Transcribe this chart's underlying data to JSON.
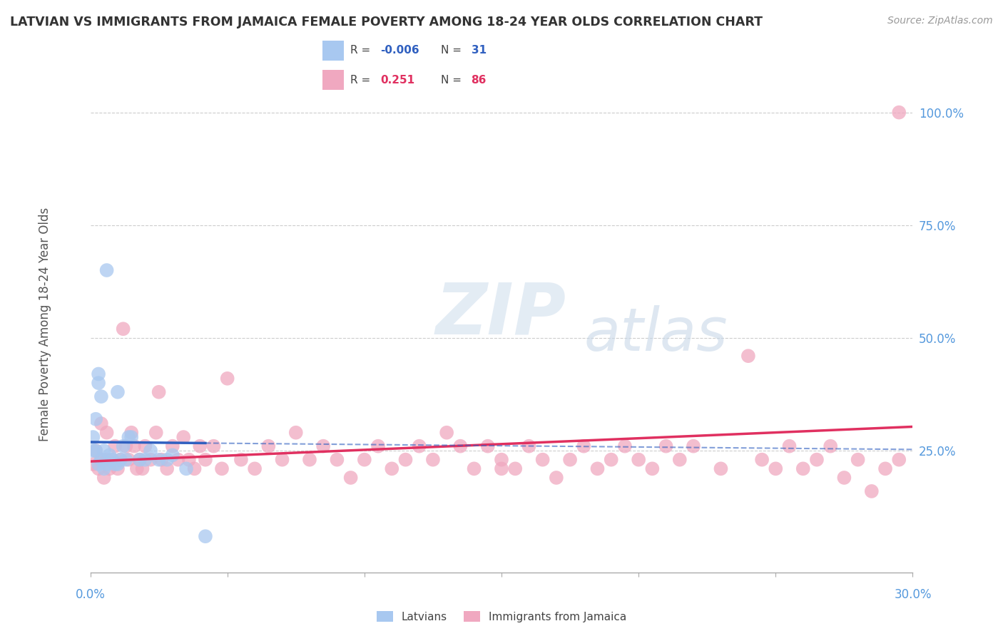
{
  "title": "LATVIAN VS IMMIGRANTS FROM JAMAICA FEMALE POVERTY AMONG 18-24 YEAR OLDS CORRELATION CHART",
  "source": "Source: ZipAtlas.com",
  "ylabel": "Female Poverty Among 18-24 Year Olds",
  "ylabel_ticks": [
    "100.0%",
    "75.0%",
    "50.0%",
    "25.0%"
  ],
  "ylabel_tick_vals": [
    1.0,
    0.75,
    0.5,
    0.25
  ],
  "xmin": 0.0,
  "xmax": 0.3,
  "ymin": -0.02,
  "ymax": 1.08,
  "latvian_R": -0.006,
  "latvian_N": 31,
  "jamaica_R": 0.251,
  "jamaica_N": 86,
  "latvian_color": "#a8c8f0",
  "jamaica_color": "#f0a8c0",
  "latvian_line_color": "#3060c0",
  "jamaica_line_color": "#e03060",
  "watermark_zip": "ZIP",
  "watermark_atlas": "atlas",
  "latvian_points_x": [
    0.001,
    0.001,
    0.002,
    0.002,
    0.003,
    0.003,
    0.003,
    0.004,
    0.004,
    0.005,
    0.005,
    0.006,
    0.006,
    0.007,
    0.008,
    0.009,
    0.01,
    0.01,
    0.011,
    0.012,
    0.013,
    0.014,
    0.015,
    0.018,
    0.02,
    0.022,
    0.025,
    0.028,
    0.03,
    0.035,
    0.042
  ],
  "latvian_points_y": [
    0.25,
    0.28,
    0.25,
    0.32,
    0.22,
    0.4,
    0.42,
    0.23,
    0.37,
    0.21,
    0.25,
    0.22,
    0.65,
    0.24,
    0.23,
    0.22,
    0.22,
    0.38,
    0.23,
    0.26,
    0.23,
    0.28,
    0.28,
    0.23,
    0.23,
    0.25,
    0.23,
    0.23,
    0.24,
    0.21,
    0.06
  ],
  "jamaica_points_x": [
    0.001,
    0.002,
    0.003,
    0.004,
    0.004,
    0.005,
    0.006,
    0.006,
    0.007,
    0.008,
    0.009,
    0.01,
    0.011,
    0.012,
    0.013,
    0.014,
    0.015,
    0.016,
    0.017,
    0.018,
    0.019,
    0.02,
    0.022,
    0.024,
    0.025,
    0.026,
    0.028,
    0.03,
    0.032,
    0.034,
    0.036,
    0.038,
    0.04,
    0.042,
    0.045,
    0.048,
    0.05,
    0.055,
    0.06,
    0.065,
    0.07,
    0.075,
    0.08,
    0.085,
    0.09,
    0.095,
    0.1,
    0.105,
    0.11,
    0.115,
    0.12,
    0.125,
    0.13,
    0.14,
    0.145,
    0.15,
    0.155,
    0.16,
    0.165,
    0.17,
    0.175,
    0.18,
    0.185,
    0.19,
    0.195,
    0.2,
    0.205,
    0.21,
    0.215,
    0.22,
    0.23,
    0.24,
    0.245,
    0.25,
    0.255,
    0.26,
    0.265,
    0.27,
    0.275,
    0.28,
    0.285,
    0.29,
    0.295,
    0.15,
    0.135,
    0.295
  ],
  "jamaica_points_y": [
    0.22,
    0.25,
    0.21,
    0.23,
    0.31,
    0.19,
    0.23,
    0.29,
    0.21,
    0.23,
    0.26,
    0.21,
    0.23,
    0.52,
    0.26,
    0.23,
    0.29,
    0.26,
    0.21,
    0.23,
    0.21,
    0.26,
    0.23,
    0.29,
    0.38,
    0.23,
    0.21,
    0.26,
    0.23,
    0.28,
    0.23,
    0.21,
    0.26,
    0.23,
    0.26,
    0.21,
    0.41,
    0.23,
    0.21,
    0.26,
    0.23,
    0.29,
    0.23,
    0.26,
    0.23,
    0.19,
    0.23,
    0.26,
    0.21,
    0.23,
    0.26,
    0.23,
    0.29,
    0.21,
    0.26,
    0.23,
    0.21,
    0.26,
    0.23,
    0.19,
    0.23,
    0.26,
    0.21,
    0.23,
    0.26,
    0.23,
    0.21,
    0.26,
    0.23,
    0.26,
    0.21,
    0.46,
    0.23,
    0.21,
    0.26,
    0.21,
    0.23,
    0.26,
    0.19,
    0.23,
    0.16,
    0.21,
    0.23,
    0.21,
    0.26,
    1.0
  ]
}
